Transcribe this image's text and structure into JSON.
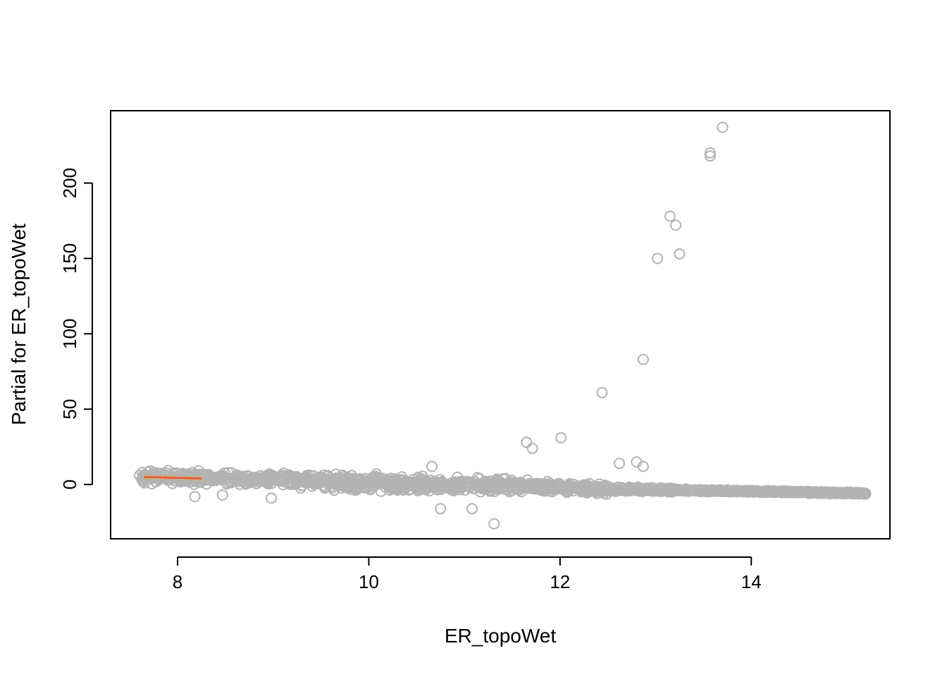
{
  "chart_data": {
    "type": "scatter",
    "title": "",
    "xlabel": "ER_topoWet",
    "ylabel": "Partial for ER_topoWet",
    "xlim": [
      7.3,
      15.45
    ],
    "ylim": [
      -36,
      248
    ],
    "xticks": [
      8,
      10,
      12,
      14
    ],
    "yticks": [
      0,
      50,
      100,
      150,
      200
    ],
    "grid": false,
    "legend": "none",
    "point_color": "#b3b3b3",
    "fit_line_color": "#e3564e",
    "band_color": "#e8a33c",
    "outliers": [
      {
        "x": 13.7,
        "y": 237
      },
      {
        "x": 13.57,
        "y": 220
      },
      {
        "x": 13.57,
        "y": 218
      },
      {
        "x": 13.15,
        "y": 178
      },
      {
        "x": 13.21,
        "y": 172
      },
      {
        "x": 13.25,
        "y": 153
      },
      {
        "x": 13.02,
        "y": 150
      },
      {
        "x": 12.87,
        "y": 83
      },
      {
        "x": 12.44,
        "y": 61
      },
      {
        "x": 12.01,
        "y": 31
      },
      {
        "x": 11.65,
        "y": 28
      },
      {
        "x": 11.71,
        "y": 24
      },
      {
        "x": 11.31,
        "y": -26
      },
      {
        "x": 11.08,
        "y": -16
      },
      {
        "x": 10.75,
        "y": -16
      },
      {
        "x": 12.8,
        "y": 15
      },
      {
        "x": 12.87,
        "y": 12
      },
      {
        "x": 12.62,
        "y": 14
      },
      {
        "x": 10.66,
        "y": 12
      },
      {
        "x": 7.63,
        "y": 8
      },
      {
        "x": 8.22,
        "y": 9
      },
      {
        "x": 8.18,
        "y": -8
      },
      {
        "x": 8.47,
        "y": -7
      },
      {
        "x": 8.98,
        "y": -9
      }
    ],
    "bulk_trend": [
      {
        "x": 7.6,
        "y": 5
      },
      {
        "x": 8.5,
        "y": 4
      },
      {
        "x": 9.5,
        "y": 2
      },
      {
        "x": 10.5,
        "y": 0
      },
      {
        "x": 11.5,
        "y": -1
      },
      {
        "x": 12.5,
        "y": -3
      },
      {
        "x": 13.5,
        "y": -4
      },
      {
        "x": 14.5,
        "y": -5
      },
      {
        "x": 15.2,
        "y": -6
      }
    ],
    "fit_line": [
      {
        "x": 7.65,
        "y": 5
      },
      {
        "x": 8.25,
        "y": 4
      }
    ]
  }
}
